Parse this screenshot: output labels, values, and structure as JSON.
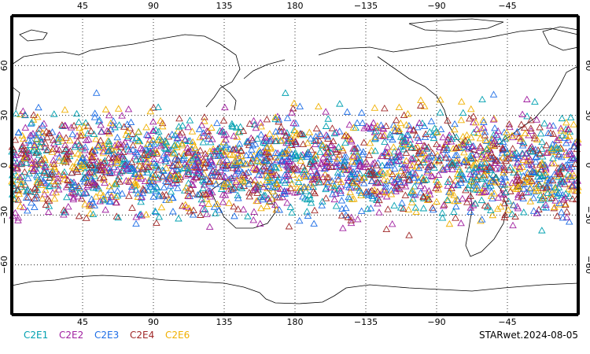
{
  "chart_data": {
    "type": "scatter",
    "map": "global occultation locations (cylindrical projection, centred on 180)",
    "lon_range": [
      0,
      360
    ],
    "lat_range": [
      -90,
      90
    ],
    "grid": true,
    "grid_lon": [
      45,
      90,
      135,
      180,
      225,
      270,
      315
    ],
    "grid_lat": [
      -60,
      -30,
      0,
      30,
      60
    ],
    "x_tick_labels": [
      "45",
      "90",
      "135",
      "180",
      "−135",
      "−90",
      "−45"
    ],
    "y_tick_labels": [
      "−60",
      "−30",
      "0",
      "30",
      "60"
    ],
    "marker": "open-triangle",
    "lat_band_approx": [
      -45,
      45
    ],
    "series": [
      {
        "name": "C2E1",
        "color": "#00a0b0"
      },
      {
        "name": "C2E2",
        "color": "#a020a0"
      },
      {
        "name": "C2E3",
        "color": "#1e6ee6"
      },
      {
        "name": "C2E4",
        "color": "#a02828"
      },
      {
        "name": "C2E6",
        "color": "#f0b000"
      }
    ],
    "legend_position": "bottom-left"
  },
  "footer": {
    "stamp": "STARwet.2024-08-05"
  }
}
